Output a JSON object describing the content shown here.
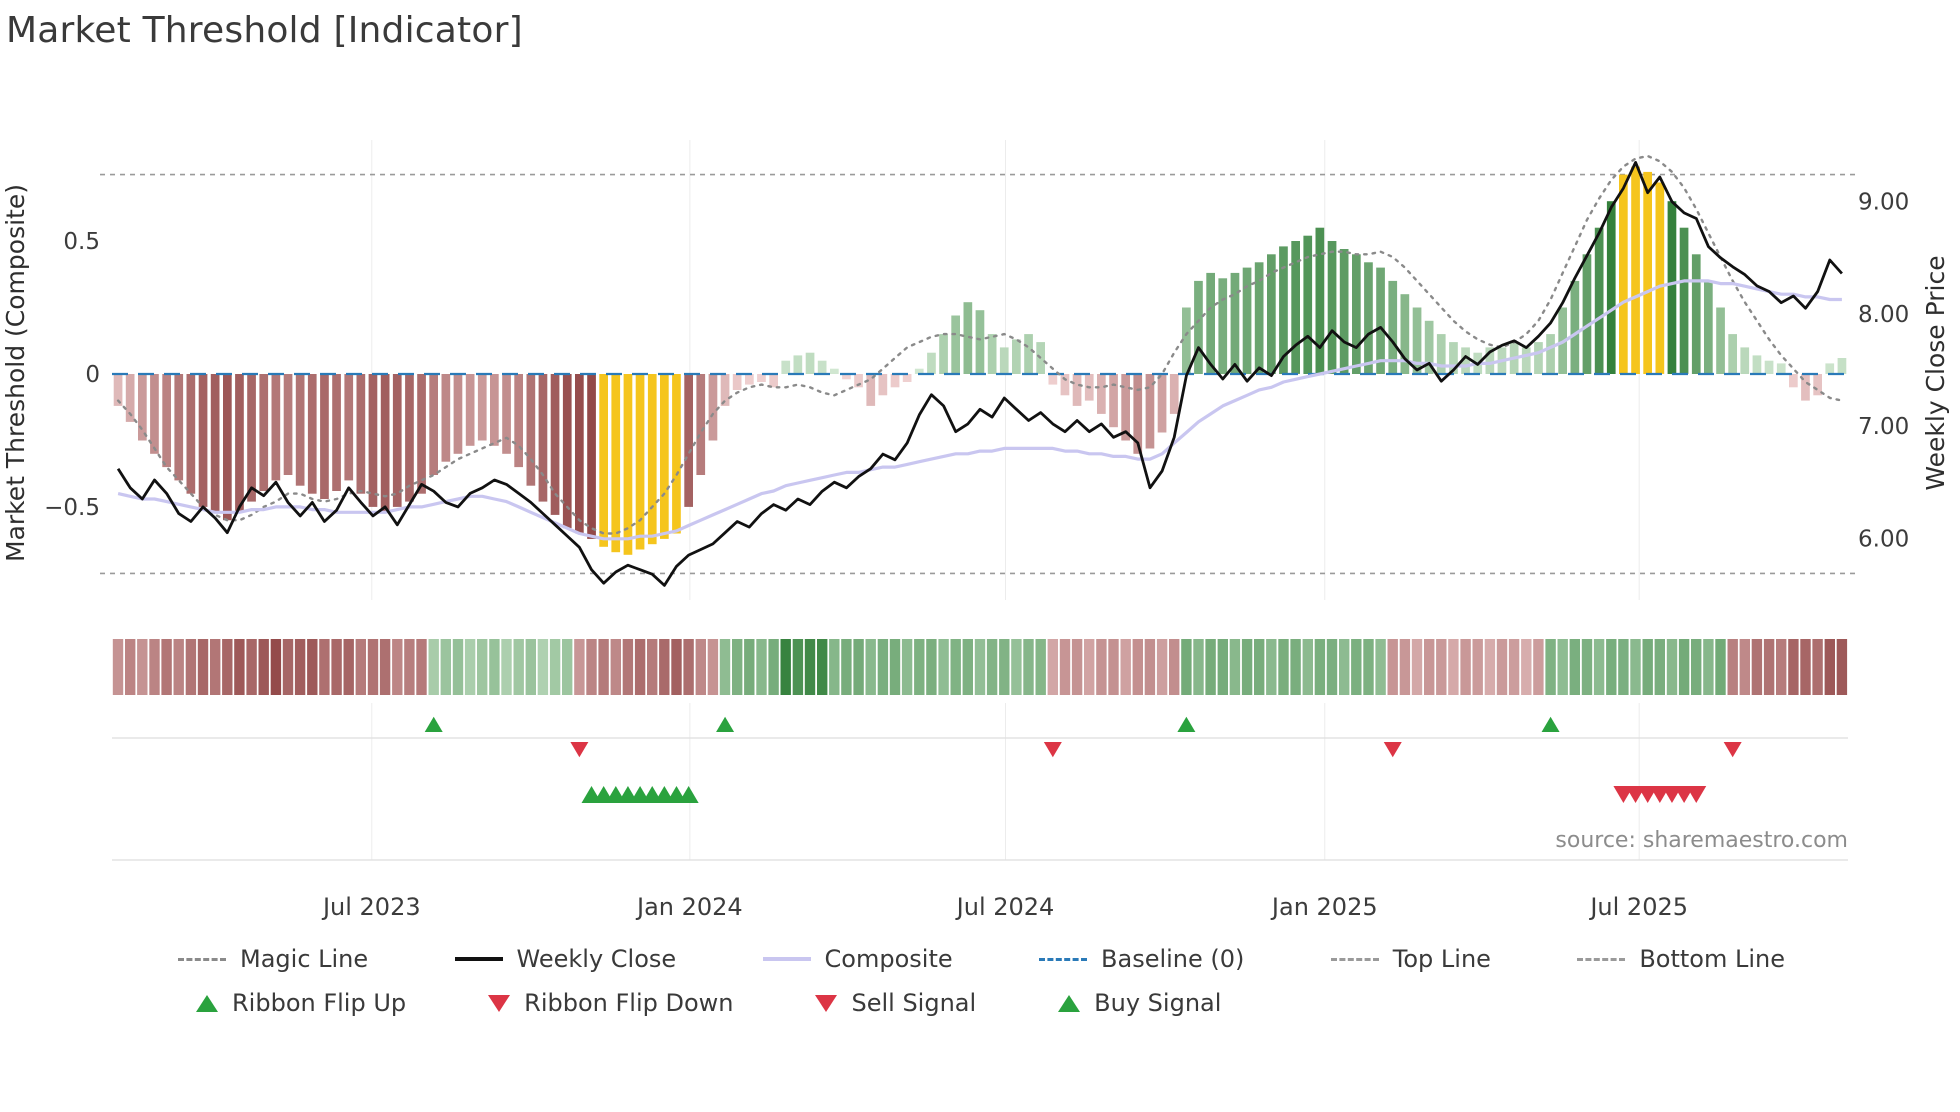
{
  "title": "Market Threshold [Indicator]",
  "source": "source: sharemaestro.com",
  "axes": {
    "left_label": "Market Threshold (Composite)",
    "right_label": "Weekly Close Price",
    "left_ticks": [
      {
        "label": "0.5",
        "value": 0.5
      },
      {
        "label": "0",
        "value": 0
      },
      {
        "label": "−0.5",
        "value": -0.5
      }
    ],
    "right_ticks": [
      {
        "label": "9.00",
        "value": 9.0
      },
      {
        "label": "8.00",
        "value": 8.0
      },
      {
        "label": "7.00",
        "value": 7.0
      },
      {
        "label": "6.00",
        "value": 6.0
      }
    ],
    "x_ticks": [
      {
        "label": "Jul 2023",
        "week": 20.9
      },
      {
        "label": "Jan 2024",
        "week": 47.1
      },
      {
        "label": "Jul 2024",
        "week": 73.1
      },
      {
        "label": "Jan 2025",
        "week": 99.4
      },
      {
        "label": "Jul 2025",
        "week": 125.3
      }
    ]
  },
  "legend": {
    "magic": "Magic Line",
    "weekly": "Weekly Close",
    "composite": "Composite",
    "baseline": "Baseline (0)",
    "top": "Top Line",
    "bottom": "Bottom Line",
    "flip_up": "Ribbon Flip Up",
    "flip_down": "Ribbon Flip Down",
    "sell": "Sell Signal",
    "buy": "Buy Signal"
  },
  "colors": {
    "bar_pos_light": "#d8ecd8",
    "bar_pos_dark": "#2e7d36",
    "bar_neg_light": "#f6dada",
    "bar_neg_dark": "#8a3c3c",
    "highlight": "#f5c51d",
    "weekly": "#111111",
    "composite_line": "#c9c6f0",
    "magic": "#8a8a8a",
    "baseline": "#2a7ab8",
    "guide": "#9a9a9a",
    "grid": "#ececec",
    "faint": "#dedede",
    "buy_green": "#2aa23e",
    "sell_red": "#dc3545",
    "text": "#3c3c3c",
    "muted": "#8c8c8c"
  },
  "chart_data": {
    "type": "bar",
    "subtype": "weekly composite indicator with overlay lines, signal ribbon and signal markers",
    "n_weeks": 143,
    "left_ylim": [
      -0.85,
      0.88
    ],
    "right_ylim": [
      5.45,
      9.55
    ],
    "baseline": 0,
    "top_line": 0.75,
    "bottom_line": -0.75,
    "bars": {
      "name": "Market Threshold (Composite)",
      "values": [
        -0.12,
        -0.18,
        -0.25,
        -0.3,
        -0.35,
        -0.4,
        -0.45,
        -0.5,
        -0.52,
        -0.55,
        -0.52,
        -0.48,
        -0.44,
        -0.4,
        -0.38,
        -0.42,
        -0.45,
        -0.47,
        -0.44,
        -0.4,
        -0.45,
        -0.5,
        -0.52,
        -0.5,
        -0.48,
        -0.45,
        -0.38,
        -0.33,
        -0.3,
        -0.27,
        -0.25,
        -0.27,
        -0.3,
        -0.35,
        -0.42,
        -0.48,
        -0.53,
        -0.58,
        -0.6,
        -0.62,
        -0.65,
        -0.67,
        -0.68,
        -0.66,
        -0.64,
        -0.62,
        -0.6,
        -0.5,
        -0.38,
        -0.25,
        -0.12,
        -0.06,
        -0.04,
        -0.03,
        -0.05,
        0.05,
        0.07,
        0.08,
        0.05,
        0.02,
        -0.02,
        -0.05,
        -0.12,
        -0.08,
        -0.05,
        -0.03,
        0.02,
        0.08,
        0.15,
        0.22,
        0.27,
        0.24,
        0.15,
        0.1,
        0.13,
        0.15,
        0.12,
        -0.04,
        -0.08,
        -0.12,
        -0.1,
        -0.15,
        -0.2,
        -0.25,
        -0.3,
        -0.28,
        -0.22,
        -0.15,
        0.25,
        0.35,
        0.38,
        0.36,
        0.38,
        0.4,
        0.42,
        0.45,
        0.48,
        0.5,
        0.52,
        0.55,
        0.5,
        0.47,
        0.45,
        0.42,
        0.4,
        0.35,
        0.3,
        0.25,
        0.2,
        0.15,
        0.12,
        0.1,
        0.08,
        0.1,
        0.1,
        0.12,
        0.1,
        0.12,
        0.15,
        0.25,
        0.35,
        0.45,
        0.55,
        0.65,
        0.75,
        0.78,
        0.76,
        0.72,
        0.65,
        0.55,
        0.45,
        0.35,
        0.25,
        0.15,
        0.1,
        0.07,
        0.05,
        0.04,
        -0.05,
        -0.1,
        -0.08,
        0.04,
        0.06
      ],
      "highlight_indices": [
        40,
        41,
        42,
        43,
        44,
        45,
        46,
        124,
        125,
        126,
        127
      ]
    },
    "series": [
      {
        "name": "Weekly Close",
        "axis": "right",
        "values": [
          6.62,
          6.45,
          6.35,
          6.52,
          6.4,
          6.22,
          6.15,
          6.28,
          6.18,
          6.05,
          6.28,
          6.45,
          6.38,
          6.5,
          6.32,
          6.2,
          6.32,
          6.15,
          6.25,
          6.45,
          6.32,
          6.2,
          6.28,
          6.12,
          6.3,
          6.48,
          6.42,
          6.32,
          6.28,
          6.4,
          6.45,
          6.52,
          6.48,
          6.4,
          6.32,
          6.22,
          6.12,
          6.02,
          5.92,
          5.72,
          5.6,
          5.7,
          5.76,
          5.72,
          5.68,
          5.58,
          5.75,
          5.85,
          5.9,
          5.95,
          6.05,
          6.15,
          6.1,
          6.22,
          6.3,
          6.25,
          6.35,
          6.3,
          6.42,
          6.5,
          6.45,
          6.55,
          6.62,
          6.75,
          6.7,
          6.85,
          7.1,
          7.28,
          7.18,
          6.95,
          7.02,
          7.15,
          7.08,
          7.25,
          7.15,
          7.05,
          7.12,
          7.02,
          6.95,
          7.05,
          6.95,
          7.02,
          6.9,
          6.95,
          6.85,
          6.45,
          6.6,
          6.9,
          7.45,
          7.7,
          7.55,
          7.42,
          7.55,
          7.4,
          7.52,
          7.45,
          7.62,
          7.72,
          7.8,
          7.7,
          7.85,
          7.75,
          7.7,
          7.82,
          7.88,
          7.75,
          7.6,
          7.5,
          7.56,
          7.4,
          7.5,
          7.62,
          7.55,
          7.66,
          7.72,
          7.76,
          7.7,
          7.8,
          7.92,
          8.1,
          8.32,
          8.52,
          8.72,
          8.95,
          9.12,
          9.35,
          9.08,
          9.22,
          9.0,
          8.9,
          8.85,
          8.6,
          8.5,
          8.42,
          8.35,
          8.25,
          8.2,
          8.1,
          8.16,
          8.05,
          8.2,
          8.48,
          8.36
        ]
      },
      {
        "name": "Composite",
        "axis": "left",
        "values": [
          -0.45,
          -0.46,
          -0.47,
          -0.47,
          -0.48,
          -0.49,
          -0.5,
          -0.51,
          -0.52,
          -0.52,
          -0.52,
          -0.51,
          -0.51,
          -0.5,
          -0.5,
          -0.5,
          -0.51,
          -0.51,
          -0.52,
          -0.52,
          -0.52,
          -0.52,
          -0.52,
          -0.51,
          -0.5,
          -0.5,
          -0.49,
          -0.48,
          -0.47,
          -0.46,
          -0.46,
          -0.47,
          -0.48,
          -0.5,
          -0.52,
          -0.54,
          -0.56,
          -0.58,
          -0.6,
          -0.61,
          -0.62,
          -0.62,
          -0.62,
          -0.61,
          -0.61,
          -0.6,
          -0.59,
          -0.57,
          -0.55,
          -0.53,
          -0.51,
          -0.49,
          -0.47,
          -0.45,
          -0.44,
          -0.42,
          -0.41,
          -0.4,
          -0.39,
          -0.38,
          -0.37,
          -0.37,
          -0.36,
          -0.35,
          -0.35,
          -0.34,
          -0.33,
          -0.32,
          -0.31,
          -0.3,
          -0.3,
          -0.29,
          -0.29,
          -0.28,
          -0.28,
          -0.28,
          -0.28,
          -0.28,
          -0.29,
          -0.29,
          -0.3,
          -0.3,
          -0.31,
          -0.31,
          -0.32,
          -0.32,
          -0.3,
          -0.26,
          -0.22,
          -0.18,
          -0.15,
          -0.12,
          -0.1,
          -0.08,
          -0.06,
          -0.05,
          -0.03,
          -0.02,
          -0.01,
          0.0,
          0.01,
          0.02,
          0.03,
          0.04,
          0.05,
          0.05,
          0.05,
          0.04,
          0.04,
          0.03,
          0.03,
          0.03,
          0.04,
          0.04,
          0.05,
          0.06,
          0.07,
          0.08,
          0.1,
          0.12,
          0.15,
          0.18,
          0.21,
          0.24,
          0.27,
          0.29,
          0.31,
          0.33,
          0.34,
          0.35,
          0.35,
          0.35,
          0.34,
          0.34,
          0.33,
          0.32,
          0.31,
          0.3,
          0.3,
          0.29,
          0.29,
          0.28,
          0.28
        ]
      },
      {
        "name": "Magic Line",
        "axis": "left",
        "values": [
          -0.1,
          -0.15,
          -0.21,
          -0.28,
          -0.35,
          -0.4,
          -0.45,
          -0.5,
          -0.53,
          -0.55,
          -0.55,
          -0.53,
          -0.5,
          -0.48,
          -0.45,
          -0.45,
          -0.47,
          -0.48,
          -0.47,
          -0.45,
          -0.44,
          -0.45,
          -0.46,
          -0.45,
          -0.42,
          -0.4,
          -0.38,
          -0.35,
          -0.32,
          -0.3,
          -0.28,
          -0.26,
          -0.24,
          -0.27,
          -0.32,
          -0.38,
          -0.45,
          -0.5,
          -0.55,
          -0.58,
          -0.6,
          -0.6,
          -0.58,
          -0.55,
          -0.5,
          -0.45,
          -0.38,
          -0.3,
          -0.22,
          -0.15,
          -0.1,
          -0.07,
          -0.05,
          -0.04,
          -0.05,
          -0.05,
          -0.04,
          -0.05,
          -0.07,
          -0.08,
          -0.06,
          -0.04,
          -0.02,
          0.02,
          0.06,
          0.1,
          0.12,
          0.14,
          0.15,
          0.15,
          0.14,
          0.13,
          0.14,
          0.15,
          0.13,
          0.1,
          0.06,
          0.02,
          -0.02,
          -0.04,
          -0.05,
          -0.05,
          -0.04,
          -0.05,
          -0.06,
          -0.05,
          0.0,
          0.08,
          0.15,
          0.2,
          0.25,
          0.28,
          0.3,
          0.33,
          0.35,
          0.38,
          0.4,
          0.42,
          0.44,
          0.45,
          0.46,
          0.46,
          0.45,
          0.45,
          0.46,
          0.44,
          0.4,
          0.35,
          0.3,
          0.25,
          0.2,
          0.16,
          0.13,
          0.11,
          0.1,
          0.12,
          0.15,
          0.2,
          0.28,
          0.38,
          0.48,
          0.58,
          0.66,
          0.73,
          0.78,
          0.81,
          0.82,
          0.8,
          0.76,
          0.7,
          0.62,
          0.53,
          0.44,
          0.35,
          0.27,
          0.2,
          0.13,
          0.07,
          0.02,
          -0.03,
          -0.06,
          -0.09,
          -0.1
        ]
      }
    ],
    "ribbon_segments": [
      {
        "start": 0,
        "end": 13,
        "dir": "down",
        "i0": 0.45,
        "i1": 0.85
      },
      {
        "start": 14,
        "end": 25,
        "dir": "down",
        "i0": 0.8,
        "i1": 0.55
      },
      {
        "start": 26,
        "end": 37,
        "dir": "up",
        "i0": 0.35,
        "i1": 0.3
      },
      {
        "start": 38,
        "end": 47,
        "dir": "down",
        "i0": 0.5,
        "i1": 0.75
      },
      {
        "start": 48,
        "end": 49,
        "dir": "down",
        "i0": 0.5,
        "i1": 0.4
      },
      {
        "start": 50,
        "end": 54,
        "dir": "up",
        "i0": 0.5,
        "i1": 0.55
      },
      {
        "start": 55,
        "end": 58,
        "dir": "up",
        "i0": 0.9,
        "i1": 0.85
      },
      {
        "start": 59,
        "end": 76,
        "dir": "up",
        "i0": 0.55,
        "i1": 0.45
      },
      {
        "start": 77,
        "end": 87,
        "dir": "down",
        "i0": 0.4,
        "i1": 0.45
      },
      {
        "start": 88,
        "end": 104,
        "dir": "up",
        "i0": 0.55,
        "i1": 0.5
      },
      {
        "start": 105,
        "end": 117,
        "dir": "down",
        "i0": 0.4,
        "i1": 0.35
      },
      {
        "start": 118,
        "end": 132,
        "dir": "up",
        "i0": 0.5,
        "i1": 0.55
      },
      {
        "start": 133,
        "end": 142,
        "dir": "down",
        "i0": 0.55,
        "i1": 0.8
      }
    ],
    "signals": {
      "ribbon_flip_up_weeks": [
        26,
        50,
        88,
        118
      ],
      "ribbon_flip_down_weeks": [
        38,
        77,
        105,
        133
      ],
      "buy_signal_weeks": [
        39,
        40,
        41,
        42,
        43,
        44,
        45,
        46,
        47
      ],
      "sell_signal_weeks": [
        124,
        125,
        126,
        127,
        128,
        129,
        130
      ]
    }
  }
}
